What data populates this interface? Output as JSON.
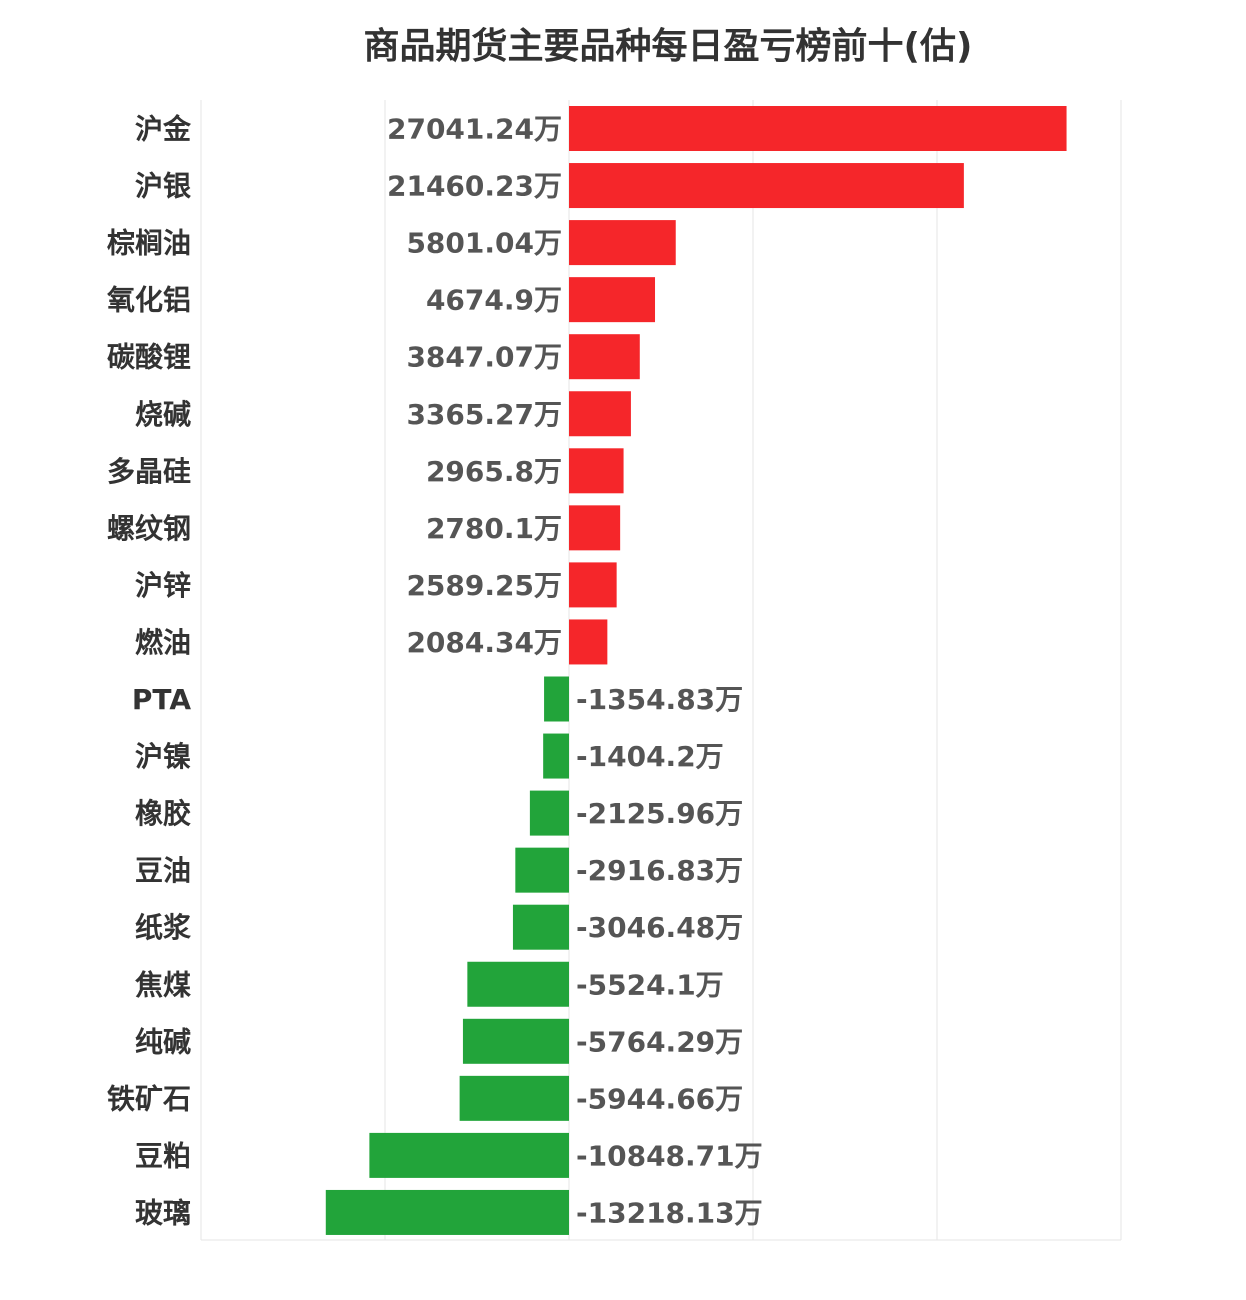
{
  "chart_data": {
    "type": "bar",
    "orientation": "horizontal",
    "title": "商品期货主要品种每日盈亏榜前十(估)",
    "unit": "万",
    "categories": [
      "沪金",
      "沪银",
      "棕榈油",
      "氧化铝",
      "碳酸锂",
      "烧碱",
      "多晶硅",
      "螺纹钢",
      "沪锌",
      "燃油",
      "PTA",
      "沪镍",
      "橡胶",
      "豆油",
      "纸浆",
      "焦煤",
      "纯碱",
      "铁矿石",
      "豆粕",
      "玻璃"
    ],
    "values": [
      27041.24,
      21460.23,
      5801.04,
      4674.9,
      3847.07,
      3365.27,
      2965.8,
      2780.1,
      2589.25,
      2084.34,
      -1354.83,
      -1404.2,
      -2125.96,
      -2916.83,
      -3046.48,
      -5524.1,
      -5764.29,
      -5944.66,
      -10848.71,
      -13218.13
    ],
    "labels": [
      "27041.24万",
      "21460.23万",
      "5801.04万",
      "4674.9万",
      "3847.07万",
      "3365.27万",
      "2965.8万",
      "2780.1万",
      "2589.25万",
      "2084.34万",
      "-1354.83万",
      "-1404.2万",
      "-2125.96万",
      "-2916.83万",
      "-3046.48万",
      "-5524.1万",
      "-5764.29万",
      "-5944.66万",
      "-10848.71万",
      "-13218.13万"
    ],
    "xlim": [
      -20000,
      30000
    ],
    "grid_step": 10000,
    "grid": true,
    "positive_color": "#f5262a",
    "negative_color": "#22a43a"
  }
}
